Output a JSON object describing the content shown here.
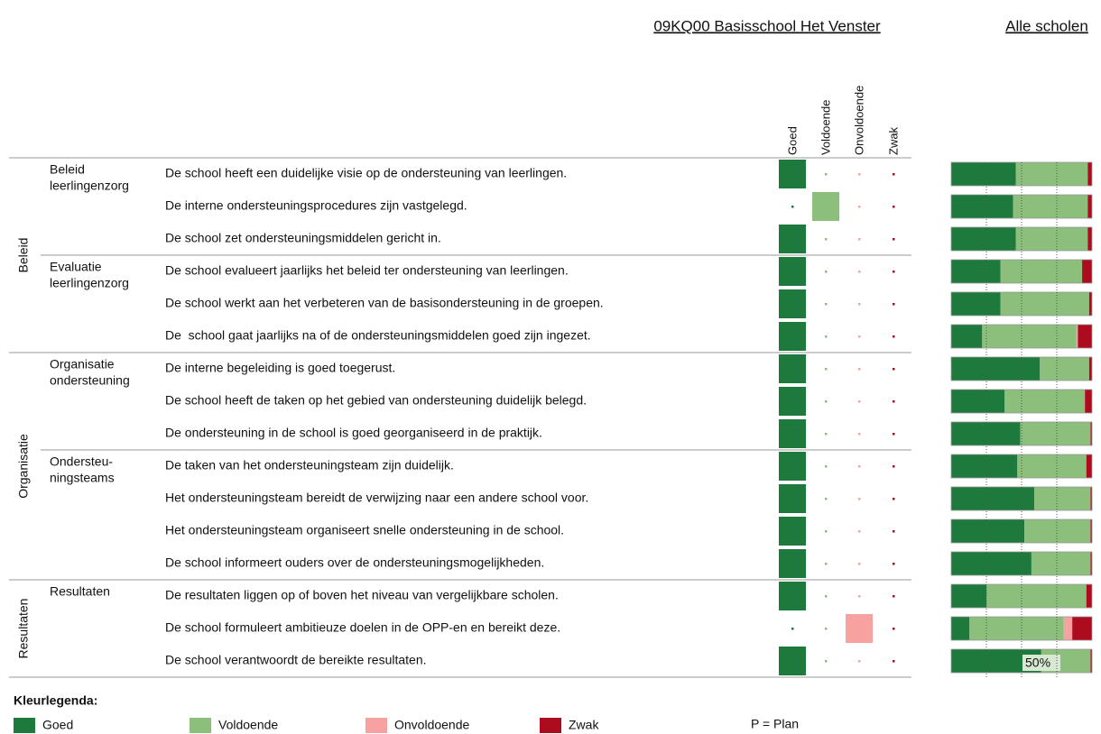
{
  "header": {
    "school_title": "09KQ00 Basisschool Het Venster",
    "comparison_title": "Alle scholen"
  },
  "columns": [
    {
      "name": "Goed",
      "color": "#1e7a3c"
    },
    {
      "name": "Voldoende",
      "color": "#8cbe7c"
    },
    {
      "name": "Onvoldoende",
      "color": "#f7a1a1"
    },
    {
      "name": "Zwak",
      "color": "#ad0c1f"
    }
  ],
  "comparison_scale": {
    "lim": [
      0,
      100
    ],
    "ticks": [
      25,
      {
        "value": 50,
        "label": "50%"
      },
      75
    ]
  },
  "sections": [
    {
      "label": "Beleid",
      "groups": [
        {
          "label": [
            "Beleid",
            "leerlingenzorg"
          ],
          "rows": [
            {
              "text": "De school heeft een duidelijke visie op de ondersteuning van leerlingen.",
              "rating": 0,
              "distribution": [
                46,
                51,
                0,
                3
              ]
            },
            {
              "text": "De interne ondersteuningsprocedures zijn vastgelegd.",
              "rating": 1,
              "distribution": [
                44,
                53,
                0,
                3
              ]
            },
            {
              "text": "De school zet ondersteuningsmiddelen gericht in.",
              "rating": 0,
              "distribution": [
                46,
                51,
                0,
                3
              ]
            }
          ]
        },
        {
          "label": [
            "Evaluatie",
            "leerlingenzorg"
          ],
          "rows": [
            {
              "text": "De school evalueert jaarlijks het beleid ter ondersteuning van leerlingen.",
              "rating": 0,
              "distribution": [
                35,
                58,
                0,
                7
              ]
            },
            {
              "text": "De school werkt aan het verbeteren van de basisondersteuning in de groepen.",
              "rating": 0,
              "distribution": [
                35,
                63,
                0,
                2
              ]
            },
            {
              "text": "De  school gaat jaarlijks na of de ondersteuningsmiddelen goed zijn ingezet.",
              "rating": 0,
              "distribution": [
                22,
                67,
                1,
                10
              ]
            }
          ]
        }
      ]
    },
    {
      "label": "Organisatie",
      "groups": [
        {
          "label": [
            "Organisatie",
            "ondersteuning"
          ],
          "rows": [
            {
              "text": "De interne begeleiding is goed toegerust.",
              "rating": 0,
              "distribution": [
                63,
                35,
                0,
                2
              ]
            },
            {
              "text": "De school heeft de taken op het gebied van ondersteuning duidelijk belegd.",
              "rating": 0,
              "distribution": [
                38,
                57,
                0,
                5
              ]
            },
            {
              "text": "De ondersteuning in de school is goed georganiseerd in de praktijk.",
              "rating": 0,
              "distribution": [
                49,
                50,
                0,
                1
              ]
            }
          ]
        },
        {
          "label": [
            "Ondersteu-",
            "ningsteams"
          ],
          "rows": [
            {
              "text": "De taken van het ondersteuningsteam zijn duidelijk.",
              "rating": 0,
              "distribution": [
                47,
                49,
                0,
                4
              ]
            },
            {
              "text": "Het ondersteuningsteam bereidt de verwijzing naar een andere school voor.",
              "rating": 0,
              "distribution": [
                59,
                40,
                0,
                1
              ]
            },
            {
              "text": "Het ondersteuningsteam organiseert snelle ondersteuning in de school.",
              "rating": 0,
              "distribution": [
                52,
                47,
                0,
                1
              ]
            },
            {
              "text": "De school informeert ouders over de ondersteuningsmogelijkheden.",
              "rating": 0,
              "distribution": [
                57,
                42,
                0,
                1
              ]
            }
          ]
        }
      ]
    },
    {
      "label": "Resultaten",
      "groups": [
        {
          "label": [
            "Resultaten"
          ],
          "rows": [
            {
              "text": "De resultaten liggen op of boven het niveau van vergelijkbare scholen.",
              "rating": 0,
              "distribution": [
                25,
                71,
                0,
                4
              ]
            },
            {
              "text": "De school formuleert ambitieuze doelen in de OPP-en en bereikt deze.",
              "rating": 2,
              "distribution": [
                13,
                67,
                6,
                14
              ]
            },
            {
              "text": "De school verantwoordt de bereikte resultaten.",
              "rating": 0,
              "distribution": [
                64,
                35,
                0,
                1
              ]
            }
          ]
        }
      ]
    }
  ],
  "legend": {
    "title": "Kleurlegenda:",
    "note": "P = Plan"
  }
}
